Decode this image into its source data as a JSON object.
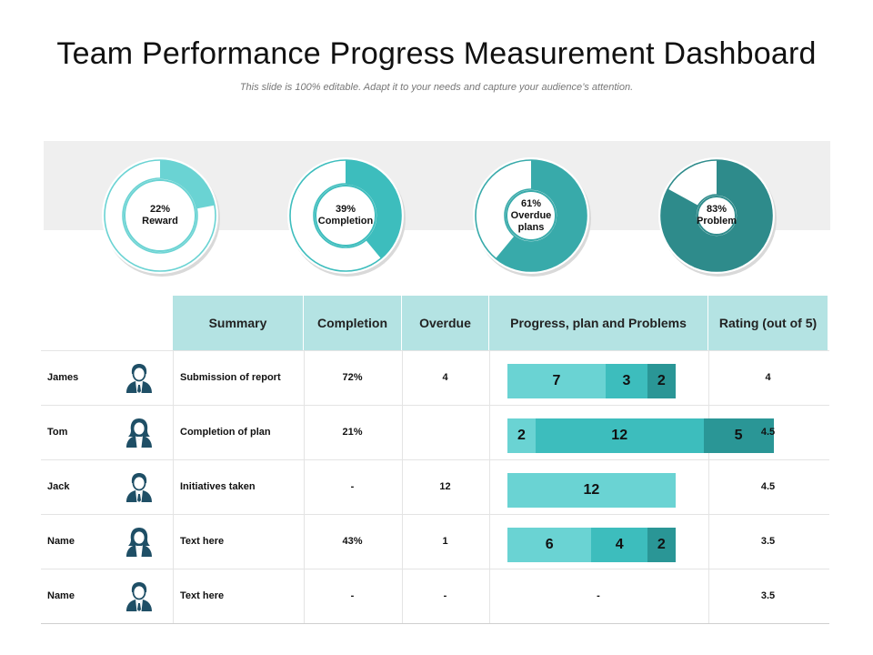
{
  "title": "Team Performance Progress Measurement Dashboard",
  "subtitle": "This slide is 100% editable. Adapt it to your needs and capture your audience’s attention.",
  "colors": {
    "light": "#6ad3d3",
    "mid": "#3dbdbd",
    "dark": "#2a9696",
    "header_bg": "#b4e3e3",
    "avatar": "#1f4f66"
  },
  "donuts": [
    {
      "percent": 22,
      "value": "22%",
      "label": "Reward",
      "color": "#6ad3d3",
      "width": 20
    },
    {
      "percent": 39,
      "value": "39%",
      "label": "Completion",
      "color": "#3dbdbd",
      "width": 26
    },
    {
      "percent": 61,
      "value": "61%",
      "label": "Overdue plans",
      "color": "#38aaaa",
      "width": 32
    },
    {
      "percent": 83,
      "value": "83%",
      "label": "Problem",
      "color": "#2e8b8b",
      "width": 38
    }
  ],
  "table": {
    "headers": [
      "Summary",
      "Completion",
      "Overdue",
      "Progress, plan and Problems",
      "Rating (out of 5)"
    ],
    "rows": [
      {
        "name": "James",
        "avatar": "male-avatar-icon",
        "summary": "Submission of report",
        "completion": "72%",
        "overdue": "4",
        "segments": [
          7,
          3,
          2
        ],
        "progress_text": "",
        "rating": "4"
      },
      {
        "name": "Tom",
        "avatar": "female-avatar-icon",
        "summary": "Completion of plan",
        "completion": "21%",
        "overdue": "",
        "segments": [
          2,
          12,
          5
        ],
        "progress_text": "",
        "rating": "4.5"
      },
      {
        "name": "Jack",
        "avatar": "male-avatar-icon",
        "summary": "Initiatives  taken",
        "completion": "-",
        "overdue": "12",
        "segments": [
          12
        ],
        "progress_text": "",
        "rating": "4.5"
      },
      {
        "name": "Name",
        "avatar": "female-avatar-icon",
        "summary": "Text here",
        "completion": "43%",
        "overdue": "1",
        "segments": [
          6,
          4,
          2
        ],
        "progress_text": "",
        "rating": "3.5"
      },
      {
        "name": "Name",
        "avatar": "male-avatar-icon",
        "summary": "Text here",
        "completion": "-",
        "overdue": "-",
        "segments": [],
        "progress_text": "-",
        "rating": "3.5"
      }
    ]
  }
}
